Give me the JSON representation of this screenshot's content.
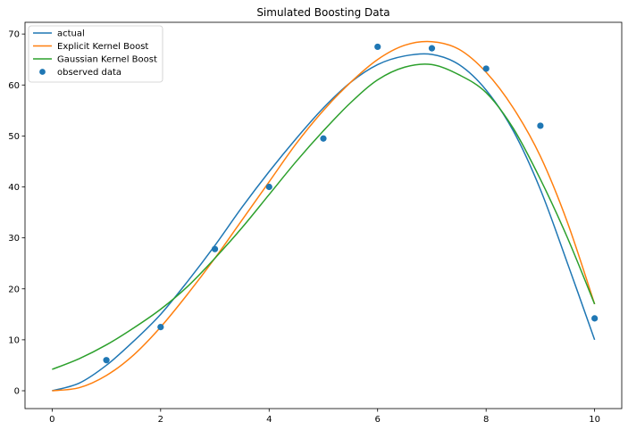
{
  "chart_data": {
    "type": "line",
    "title": "Simulated Boosting Data",
    "xlabel": "",
    "ylabel": "",
    "xlim": [
      -0.5,
      10.5
    ],
    "ylim": [
      -3.5,
      72.3
    ],
    "x_ticks": [
      0,
      2,
      4,
      6,
      8,
      10
    ],
    "y_ticks": [
      0,
      10,
      20,
      30,
      40,
      50,
      60,
      70
    ],
    "grid": false,
    "legend_position": "top-left",
    "series": [
      {
        "name": "actual",
        "kind": "line",
        "color": "#1f77b4",
        "x": [
          0,
          0.5,
          1,
          1.5,
          2,
          2.5,
          3,
          3.5,
          4,
          4.5,
          5,
          5.5,
          6,
          6.5,
          7,
          7.5,
          8,
          8.5,
          9,
          9.5,
          10
        ],
        "y": [
          0,
          1.5,
          5.0,
          9.7,
          15.0,
          21.5,
          28.5,
          36.0,
          43.0,
          49.5,
          55.5,
          60.5,
          64.0,
          65.7,
          66.0,
          64.0,
          59.0,
          51.0,
          39.5,
          25.0,
          10.0
        ]
      },
      {
        "name": "Explicit Kernel Boost",
        "kind": "line",
        "color": "#ff7f0e",
        "x": [
          0,
          0.5,
          1,
          1.5,
          2,
          2.5,
          3,
          3.5,
          4,
          4.5,
          5,
          5.5,
          6,
          6.5,
          7,
          7.5,
          8,
          8.5,
          9,
          9.5,
          10
        ],
        "y": [
          0,
          0.6,
          3.0,
          7.0,
          12.5,
          19.0,
          26.0,
          33.5,
          41.0,
          48.5,
          55.0,
          60.5,
          65.0,
          67.8,
          68.5,
          67.0,
          62.5,
          55.5,
          46.0,
          33.0,
          17.0
        ]
      },
      {
        "name": "Gaussian Kernel Boost",
        "kind": "line",
        "color": "#2ca02c",
        "x": [
          0,
          0.5,
          1,
          1.5,
          2,
          2.5,
          3,
          3.5,
          4,
          4.5,
          5,
          5.5,
          6,
          6.5,
          7,
          7.5,
          8,
          8.5,
          9,
          9.5,
          10
        ],
        "y": [
          4.2,
          6.3,
          9.0,
          12.3,
          16.0,
          20.5,
          26.0,
          32.0,
          38.5,
          45.0,
          51.0,
          56.5,
          61.0,
          63.5,
          64.0,
          62.0,
          58.5,
          51.5,
          41.5,
          30.0,
          17.0
        ]
      },
      {
        "name": "observed data",
        "kind": "scatter",
        "color": "#1f77b4",
        "x": [
          1,
          2,
          3,
          4,
          5,
          6,
          7,
          8,
          9,
          10
        ],
        "y": [
          6.0,
          12.5,
          27.8,
          40.0,
          49.5,
          67.5,
          67.2,
          63.2,
          52.0,
          14.2
        ]
      }
    ]
  }
}
